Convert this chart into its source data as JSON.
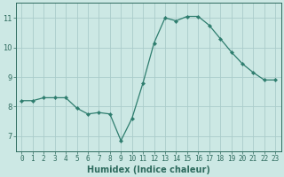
{
  "xlabel": "Humidex (Indice chaleur)",
  "ylabel": "",
  "x": [
    0,
    1,
    2,
    3,
    4,
    5,
    6,
    7,
    8,
    9,
    10,
    11,
    12,
    13,
    14,
    15,
    16,
    17,
    18,
    19,
    20,
    21,
    22,
    23
  ],
  "y": [
    8.2,
    8.2,
    8.3,
    8.3,
    8.3,
    7.95,
    7.75,
    7.8,
    7.75,
    6.85,
    7.6,
    8.8,
    10.15,
    11.0,
    10.9,
    11.05,
    11.05,
    10.75,
    10.3,
    9.85,
    9.45,
    9.15,
    8.9,
    8.9
  ],
  "line_color": "#2e7d6e",
  "marker": "D",
  "marker_size": 2.2,
  "bg_color": "#cce8e4",
  "grid_color": "#aaccca",
  "ylim": [
    6.5,
    11.5
  ],
  "xlim": [
    -0.5,
    23.5
  ],
  "yticks": [
    7,
    8,
    9,
    10,
    11
  ],
  "xticks": [
    0,
    1,
    2,
    3,
    4,
    5,
    6,
    7,
    8,
    9,
    10,
    11,
    12,
    13,
    14,
    15,
    16,
    17,
    18,
    19,
    20,
    21,
    22,
    23
  ],
  "tick_color": "#2e6b5e",
  "label_fontsize": 6.5,
  "tick_fontsize": 5.5,
  "xlabel_fontsize": 7.0
}
